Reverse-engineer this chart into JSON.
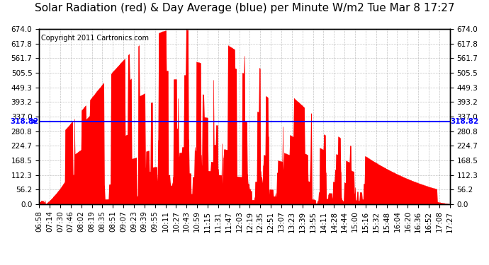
{
  "title": "Solar Radiation (red) & Day Average (blue) per Minute W/m2 Tue Mar 8 17:27",
  "copyright": "Copyright 2011 Cartronics.com",
  "avg_value": 318.82,
  "avg_label": "318.82",
  "y_max": 674.0,
  "y_min": 0.0,
  "yticks": [
    0.0,
    56.2,
    112.3,
    168.5,
    224.7,
    280.8,
    337.0,
    393.2,
    449.3,
    505.5,
    561.7,
    617.8,
    674.0
  ],
  "ytick_labels": [
    "0.0",
    "56.2",
    "112.3",
    "168.5",
    "224.7",
    "280.8",
    "337.0",
    "393.2",
    "449.3",
    "505.5",
    "561.7",
    "617.8",
    "674.0"
  ],
  "xtick_labels": [
    "06:58",
    "07:14",
    "07:30",
    "07:46",
    "08:02",
    "08:19",
    "08:35",
    "08:51",
    "09:07",
    "09:23",
    "09:39",
    "09:55",
    "10:11",
    "10:27",
    "10:43",
    "10:59",
    "11:15",
    "11:31",
    "11:47",
    "12:03",
    "12:19",
    "12:35",
    "12:51",
    "13:07",
    "13:23",
    "13:39",
    "13:55",
    "14:11",
    "14:28",
    "14:44",
    "15:00",
    "15:16",
    "15:32",
    "15:48",
    "16:04",
    "16:20",
    "16:36",
    "16:52",
    "17:08",
    "17:27"
  ],
  "bar_color": "red",
  "line_color": "blue",
  "background_color": "#ffffff",
  "grid_color": "#aaaaaa",
  "title_fontsize": 11,
  "copyright_fontsize": 7,
  "tick_fontsize": 7.5
}
